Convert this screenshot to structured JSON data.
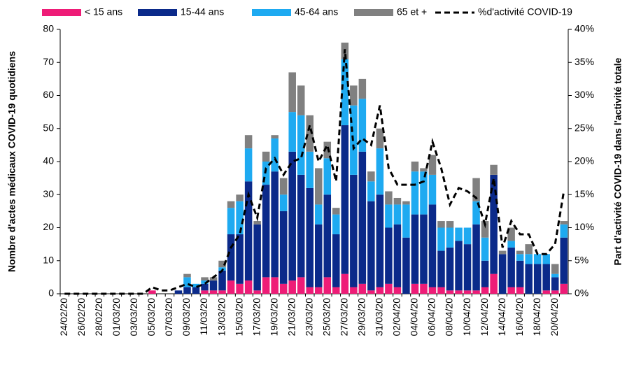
{
  "chart_data": {
    "type": "bar",
    "stacked": true,
    "y_label": "Nombre d'actes médicaux COVID-19 quotidiens",
    "y2_label": "Part d'activité COVID-19 dans l'activité totale",
    "categories": [
      "24/02/20",
      null,
      "26/02/20",
      null,
      "28/02/20",
      null,
      "01/03/20",
      null,
      "03/03/20",
      null,
      "05/03/20",
      null,
      "07/03/20",
      null,
      "09/03/20",
      null,
      "11/03/20",
      null,
      "13/03/20",
      null,
      "15/03/20",
      null,
      "17/03/20",
      null,
      "19/03/20",
      null,
      "21/03/20",
      null,
      "23/03/20",
      null,
      "25/03/20",
      null,
      "27/03/20",
      null,
      "29/03/20",
      null,
      "31/03/20",
      null,
      "02/04/20",
      null,
      "04/04/20",
      null,
      "06/04/20",
      null,
      "08/04/20",
      null,
      "10/04/20",
      null,
      "12/04/20",
      null,
      "14/04/20",
      null,
      "16/04/20",
      null,
      "18/04/20",
      null,
      "20/04/20",
      null
    ],
    "series": [
      {
        "name": "< 15 ans",
        "color": "#ee1c77",
        "values": [
          0,
          0,
          0,
          0,
          0,
          0,
          0,
          0,
          0,
          0,
          1,
          0,
          0,
          0,
          0,
          0,
          1,
          1,
          1,
          4,
          3,
          4,
          1,
          5,
          5,
          3,
          4,
          5,
          2,
          2,
          5,
          2,
          6,
          2,
          3,
          1,
          2,
          3,
          2,
          0,
          3,
          3,
          2,
          2,
          1,
          1,
          1,
          1,
          2,
          6,
          0,
          2,
          2,
          0,
          0,
          1,
          1,
          3
        ]
      },
      {
        "name": "15-44 ans",
        "color": "#0b2a8a",
        "values": [
          0,
          0,
          0,
          0,
          0,
          0,
          0,
          0,
          0,
          0,
          0,
          0,
          0,
          1,
          2,
          2,
          2,
          3,
          6,
          14,
          15,
          30,
          20,
          28,
          32,
          22,
          39,
          31,
          30,
          19,
          25,
          16,
          45,
          34,
          40,
          27,
          28,
          17,
          19,
          17,
          21,
          21,
          25,
          11,
          13,
          15,
          14,
          20,
          8,
          30,
          12,
          12,
          8,
          9,
          9,
          8,
          4,
          14
        ]
      },
      {
        "name": "45-64 ans",
        "color": "#1eaaf1",
        "values": [
          0,
          0,
          0,
          0,
          0,
          0,
          0,
          0,
          0,
          0,
          0,
          0,
          0,
          0,
          3,
          1,
          1,
          0,
          1,
          8,
          10,
          10,
          0,
          7,
          10,
          5,
          12,
          18,
          11,
          6,
          11,
          6,
          20,
          21,
          16,
          6,
          14,
          7,
          6,
          10,
          13,
          13,
          9,
          7,
          6,
          4,
          5,
          7,
          7,
          0,
          0,
          2,
          2,
          3,
          3,
          3,
          1,
          4
        ]
      },
      {
        "name": "65 et +",
        "color": "#808080",
        "values": [
          0,
          0,
          0,
          0,
          0,
          0,
          0,
          0,
          0,
          0,
          0,
          0,
          0,
          0,
          1,
          0,
          1,
          1,
          2,
          2,
          2,
          4,
          1,
          3,
          1,
          5,
          12,
          9,
          11,
          11,
          5,
          2,
          5,
          6,
          6,
          3,
          6,
          4,
          2,
          1,
          3,
          1,
          6,
          2,
          2,
          0,
          0,
          7,
          5,
          3,
          1,
          4,
          1,
          3,
          0,
          0,
          3,
          1
        ]
      },
      {
        "name": "%d'activité COVID-19",
        "color": "#000000",
        "axis": "y2",
        "type": "line",
        "dashed": true,
        "values": [
          0,
          0,
          0,
          0,
          0,
          0,
          0,
          0,
          0,
          0,
          1,
          0.5,
          0.5,
          1,
          1.5,
          1,
          1.5,
          2.5,
          3.5,
          7,
          9,
          15,
          11.5,
          19,
          20.5,
          18,
          20,
          20.5,
          25.5,
          20,
          22.5,
          17,
          37,
          22,
          23.5,
          22.5,
          28.5,
          19,
          16.5,
          16.5,
          16.5,
          17,
          23,
          19,
          13.5,
          16,
          15.5,
          14.5,
          10.5,
          17.5,
          7,
          11,
          9,
          9,
          6,
          6,
          7.5,
          15.5
        ]
      }
    ],
    "ylim": [
      0,
      80
    ],
    "yticks": [
      0,
      10,
      20,
      30,
      40,
      50,
      60,
      70,
      80
    ],
    "y2lim": [
      0,
      40
    ],
    "y2ticks": [
      {
        "value": 0,
        "label": "0%"
      },
      {
        "value": 5,
        "label": "5%"
      },
      {
        "value": 10,
        "label": "10%"
      },
      {
        "value": 15,
        "label": "15%"
      },
      {
        "value": 20,
        "label": "20%"
      },
      {
        "value": 25,
        "label": "25%"
      },
      {
        "value": 30,
        "label": "30%"
      },
      {
        "value": 35,
        "label": "35%"
      },
      {
        "value": 40,
        "label": "40%"
      }
    ],
    "grid": false,
    "legend": "top"
  }
}
